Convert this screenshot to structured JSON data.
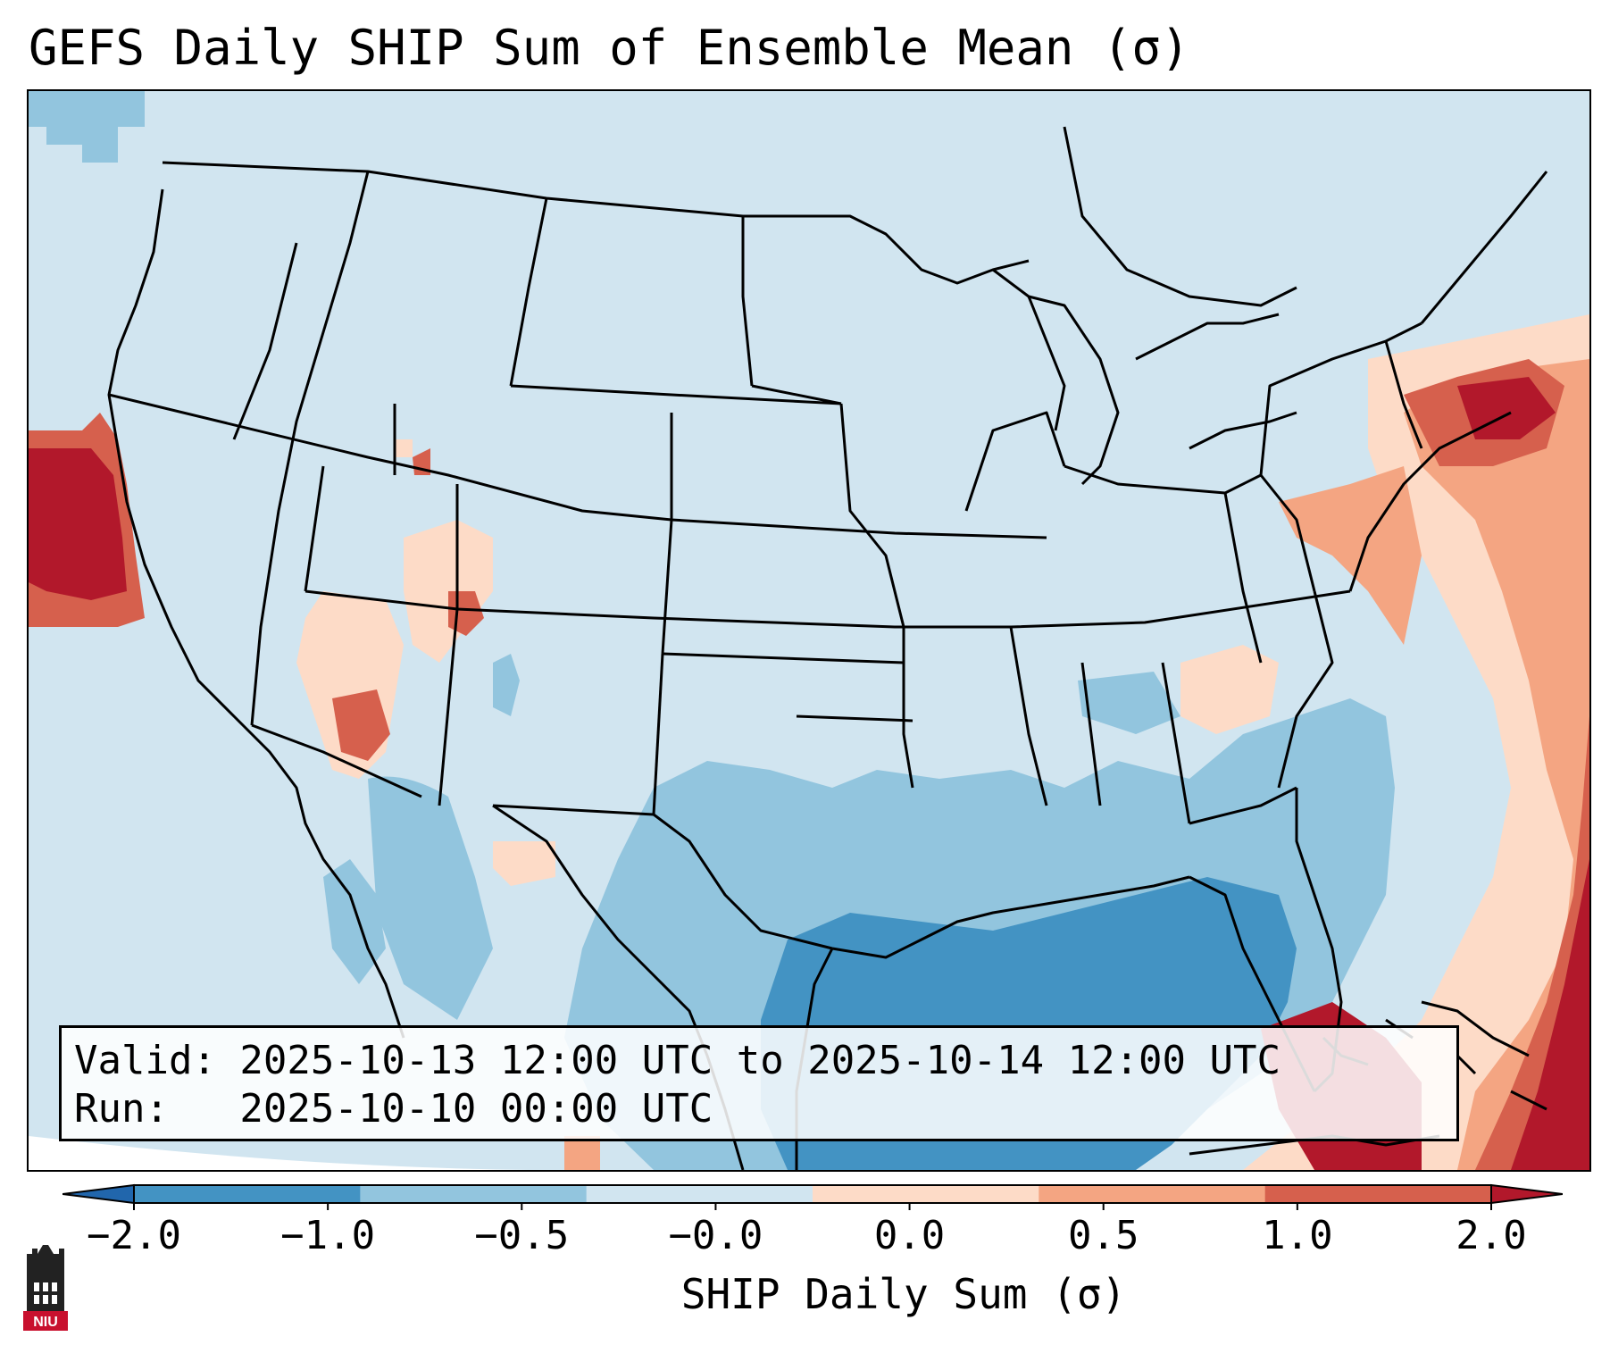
{
  "title": "GEFS Daily SHIP Sum of Ensemble Mean (σ)",
  "info": {
    "valid_line": "Valid: 2025-10-13 12:00 UTC to 2025-10-14 12:00 UTC",
    "run_line": "Run:   2025-10-10 00:00 UTC"
  },
  "colorbar": {
    "label": "SHIP Daily Sum (σ)",
    "ticks": [
      "−2.0",
      "−1.0",
      "−0.5",
      "−0.0",
      "0.0",
      "0.5",
      "1.0",
      "2.0"
    ],
    "bin_colors": [
      "#4393c3",
      "#92c5de",
      "#d1e5f0",
      "#fddbc7",
      "#f4a582",
      "#d6604d"
    ],
    "under_color": "#2166ac",
    "over_color": "#b2182b"
  },
  "map_colors": {
    "land_neutral": "#d1e5f0",
    "light_blue": "#92c5de",
    "mid_blue": "#4393c3",
    "light_red": "#fddbc7",
    "mid_red": "#f4a582",
    "red": "#d6604d",
    "dark_red": "#b2182b",
    "outside": "#ffffff"
  },
  "logo": {
    "text": "NIU",
    "icon": "university-building-icon",
    "color": "#c8102e"
  }
}
